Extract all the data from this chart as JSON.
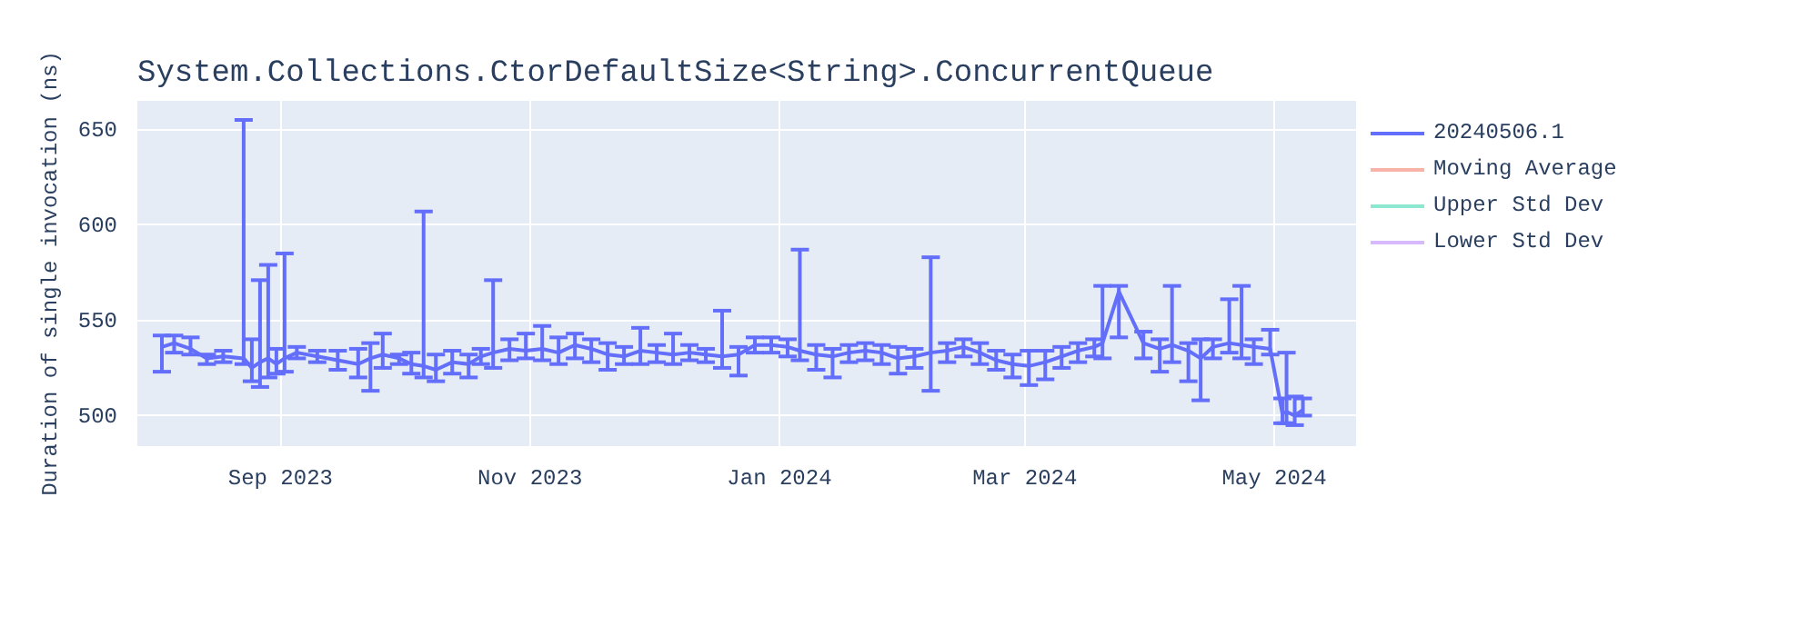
{
  "chart_data": {
    "type": "line",
    "title": "System.Collections.CtorDefaultSize<String>.ConcurrentQueue",
    "ylabel": "Duration of single invocation (ns)",
    "x": [
      "2023-08-03",
      "2023-08-06",
      "2023-08-10",
      "2023-08-14",
      "2023-08-18",
      "2023-08-23",
      "2023-08-25",
      "2023-08-27",
      "2023-08-29",
      "2023-08-31",
      "2023-09-02",
      "2023-09-05",
      "2023-09-10",
      "2023-09-15",
      "2023-09-20",
      "2023-09-23",
      "2023-09-26",
      "2023-09-30",
      "2023-10-03",
      "2023-10-06",
      "2023-10-09",
      "2023-10-13",
      "2023-10-17",
      "2023-10-20",
      "2023-10-23",
      "2023-10-27",
      "2023-10-31",
      "2023-11-04",
      "2023-11-08",
      "2023-11-12",
      "2023-11-16",
      "2023-11-20",
      "2023-11-24",
      "2023-11-28",
      "2023-12-02",
      "2023-12-06",
      "2023-12-10",
      "2023-12-14",
      "2023-12-18",
      "2023-12-22",
      "2023-12-26",
      "2023-12-30",
      "2024-01-03",
      "2024-01-06",
      "2024-01-10",
      "2024-01-14",
      "2024-01-18",
      "2024-01-22",
      "2024-01-26",
      "2024-01-30",
      "2024-02-03",
      "2024-02-07",
      "2024-02-11",
      "2024-02-15",
      "2024-02-19",
      "2024-02-23",
      "2024-02-27",
      "2024-03-02",
      "2024-03-06",
      "2024-03-10",
      "2024-03-14",
      "2024-03-18",
      "2024-03-20",
      "2024-03-24",
      "2024-03-30",
      "2024-04-03",
      "2024-04-06",
      "2024-04-10",
      "2024-04-13",
      "2024-04-16",
      "2024-04-20",
      "2024-04-23",
      "2024-04-26",
      "2024-04-30",
      "2024-05-03",
      "2024-05-04",
      "2024-05-06",
      "2024-05-08"
    ],
    "series": [
      {
        "name": "20240506.1",
        "color": "#636efa",
        "values": [
          536,
          538,
          535,
          530,
          531,
          530,
          525,
          528,
          530,
          527,
          530,
          533,
          531,
          529,
          527,
          530,
          532,
          530,
          527,
          526,
          524,
          528,
          527,
          531,
          533,
          535,
          534,
          535,
          533,
          537,
          535,
          532,
          531,
          534,
          533,
          532,
          533,
          532,
          531,
          532,
          537,
          537,
          536,
          534,
          532,
          531,
          533,
          534,
          533,
          530,
          531,
          533,
          534,
          536,
          533,
          529,
          527,
          526,
          528,
          531,
          534,
          536,
          538,
          565,
          538,
          535,
          537,
          534,
          530,
          536,
          538,
          537,
          536,
          535,
          501,
          502,
          500,
          503
        ],
        "errors": [
          [
            523,
            542
          ],
          [
            533,
            542
          ],
          [
            532,
            541
          ],
          [
            527,
            532
          ],
          [
            528,
            534
          ],
          [
            527,
            655
          ],
          [
            518,
            540
          ],
          [
            515,
            571
          ],
          [
            520,
            579
          ],
          [
            522,
            535
          ],
          [
            523,
            585
          ],
          [
            530,
            536
          ],
          [
            528,
            534
          ],
          [
            524,
            534
          ],
          [
            520,
            535
          ],
          [
            513,
            538
          ],
          [
            525,
            543
          ],
          [
            527,
            532
          ],
          [
            522,
            533
          ],
          [
            520,
            607
          ],
          [
            518,
            532
          ],
          [
            522,
            534
          ],
          [
            520,
            532
          ],
          [
            527,
            535
          ],
          [
            525,
            571
          ],
          [
            529,
            540
          ],
          [
            530,
            543
          ],
          [
            529,
            547
          ],
          [
            527,
            541
          ],
          [
            530,
            543
          ],
          [
            528,
            540
          ],
          [
            524,
            538
          ],
          [
            527,
            536
          ],
          [
            527,
            546
          ],
          [
            528,
            537
          ],
          [
            527,
            543
          ],
          [
            529,
            537
          ],
          [
            528,
            535
          ],
          [
            525,
            555
          ],
          [
            521,
            536
          ],
          [
            533,
            541
          ],
          [
            533,
            541
          ],
          [
            531,
            540
          ],
          [
            529,
            587
          ],
          [
            524,
            537
          ],
          [
            520,
            535
          ],
          [
            528,
            537
          ],
          [
            529,
            538
          ],
          [
            527,
            537
          ],
          [
            522,
            536
          ],
          [
            525,
            535
          ],
          [
            513,
            583
          ],
          [
            528,
            538
          ],
          [
            531,
            540
          ],
          [
            527,
            538
          ],
          [
            524,
            534
          ],
          [
            520,
            532
          ],
          [
            516,
            534
          ],
          [
            519,
            534
          ],
          [
            525,
            536
          ],
          [
            528,
            538
          ],
          [
            531,
            540
          ],
          [
            530,
            568
          ],
          [
            541,
            568
          ],
          [
            530,
            544
          ],
          [
            523,
            540
          ],
          [
            528,
            568
          ],
          [
            518,
            538
          ],
          [
            508,
            540
          ],
          [
            530,
            540
          ],
          [
            533,
            561
          ],
          [
            530,
            568
          ],
          [
            527,
            540
          ],
          [
            532,
            545
          ],
          [
            496,
            509
          ],
          [
            496,
            533
          ],
          [
            495,
            510
          ],
          [
            500,
            509
          ]
        ]
      },
      {
        "name": "Moving Average",
        "color": "#ef553b",
        "values": [
          null,
          null,
          null,
          null,
          null,
          null,
          null,
          null,
          null,
          null,
          null,
          null,
          null,
          null,
          null,
          null,
          null,
          null,
          null,
          null,
          null,
          null,
          null,
          null,
          null,
          null,
          null,
          null,
          null,
          null,
          null,
          null,
          null,
          null,
          null,
          null,
          null,
          null,
          null,
          null,
          null,
          null,
          null,
          null,
          null,
          null,
          null,
          null,
          null,
          null,
          null,
          null,
          null,
          null,
          null,
          null,
          null,
          null,
          null,
          null,
          null,
          null,
          null,
          null,
          null,
          null,
          null,
          null,
          null,
          null,
          null,
          null,
          null,
          null,
          null,
          null,
          null,
          null
        ]
      },
      {
        "name": "Upper Std Dev",
        "color": "#00cc96",
        "values": [
          null,
          null,
          null,
          null,
          null,
          null,
          null,
          null,
          null,
          null,
          null,
          null,
          null,
          null,
          null,
          null,
          null,
          null,
          null,
          null,
          null,
          null,
          null,
          null,
          null,
          null,
          null,
          null,
          null,
          null,
          null,
          null,
          null,
          null,
          null,
          null,
          null,
          null,
          null,
          null,
          null,
          null,
          null,
          null,
          null,
          null,
          null,
          null,
          null,
          null,
          null,
          null,
          null,
          null,
          null,
          null,
          null,
          null,
          null,
          null,
          null,
          null,
          null,
          null,
          null,
          null,
          null,
          null,
          null,
          null,
          null,
          null,
          null,
          null,
          null,
          null,
          null,
          null
        ]
      },
      {
        "name": "Lower Std Dev",
        "color": "#ab63fa",
        "values": [
          null,
          null,
          null,
          null,
          null,
          null,
          null,
          null,
          null,
          null,
          null,
          null,
          null,
          null,
          null,
          null,
          null,
          null,
          null,
          null,
          null,
          null,
          null,
          null,
          null,
          null,
          null,
          null,
          null,
          null,
          null,
          null,
          null,
          null,
          null,
          null,
          null,
          null,
          null,
          null,
          null,
          null,
          null,
          null,
          null,
          null,
          null,
          null,
          null,
          null,
          null,
          null,
          null,
          null,
          null,
          null,
          null,
          null,
          null,
          null,
          null,
          null,
          null,
          null,
          null,
          null,
          null,
          null,
          null,
          null,
          null,
          null,
          null,
          null,
          null,
          null,
          null,
          null
        ]
      }
    ],
    "xlim": [
      "2023-07-28",
      "2024-05-21"
    ],
    "xticks": [
      {
        "value": "2023-09-01",
        "label": "Sep 2023"
      },
      {
        "value": "2023-11-01",
        "label": "Nov 2023"
      },
      {
        "value": "2024-01-01",
        "label": "Jan 2024"
      },
      {
        "value": "2024-03-01",
        "label": "Mar 2024"
      },
      {
        "value": "2024-05-01",
        "label": "May 2024"
      }
    ],
    "ylim": [
      484,
      665
    ],
    "yticks": [
      500,
      550,
      600,
      650
    ],
    "grid": true,
    "legend": "right"
  }
}
